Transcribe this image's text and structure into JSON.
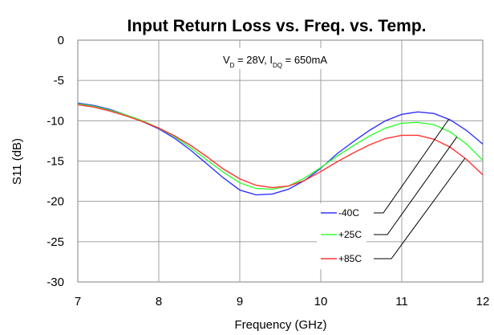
{
  "chart_data": {
    "type": "line",
    "title": "Input Return Loss vs. Freq. vs. Temp.",
    "xlabel": "Frequency (GHz)",
    "ylabel": "S11 (dB)",
    "xlim": [
      7,
      12
    ],
    "ylim": [
      -30,
      0
    ],
    "x_ticks": [
      7,
      8,
      9,
      10,
      11,
      12
    ],
    "x_tick_labels": [
      "7",
      "8",
      "9",
      "10",
      "11",
      "12"
    ],
    "y_ticks": [
      0,
      -5,
      -10,
      -15,
      -20,
      -25,
      -30
    ],
    "y_tick_labels": [
      "0",
      "-5",
      "-10",
      "-15",
      "-20",
      "-25",
      "-30"
    ],
    "grid": true,
    "annotation": {
      "v": "V",
      "v_sub": "D",
      "mid": " = 28V, I",
      "i_sub": "DQ",
      "end": " = 650mA"
    },
    "legend_placement": "bottom-right",
    "series": [
      {
        "name": "-40C",
        "color": "#3333ff",
        "points": [
          [
            7.0,
            -7.8
          ],
          [
            7.2,
            -8.1
          ],
          [
            7.4,
            -8.6
          ],
          [
            7.6,
            -9.3
          ],
          [
            7.8,
            -10.1
          ],
          [
            8.0,
            -11.0
          ],
          [
            8.2,
            -12.2
          ],
          [
            8.4,
            -13.7
          ],
          [
            8.6,
            -15.4
          ],
          [
            8.8,
            -17.1
          ],
          [
            9.0,
            -18.6
          ],
          [
            9.2,
            -19.2
          ],
          [
            9.4,
            -19.1
          ],
          [
            9.6,
            -18.5
          ],
          [
            9.8,
            -17.4
          ],
          [
            10.0,
            -15.9
          ],
          [
            10.2,
            -14.1
          ],
          [
            10.4,
            -12.6
          ],
          [
            10.6,
            -11.2
          ],
          [
            10.8,
            -10.0
          ],
          [
            11.0,
            -9.2
          ],
          [
            11.2,
            -8.9
          ],
          [
            11.4,
            -9.1
          ],
          [
            11.6,
            -9.9
          ],
          [
            11.8,
            -11.2
          ],
          [
            12.0,
            -12.9
          ]
        ]
      },
      {
        "name": "+25C",
        "color": "#33ff33",
        "points": [
          [
            7.0,
            -7.9
          ],
          [
            7.2,
            -8.2
          ],
          [
            7.4,
            -8.7
          ],
          [
            7.6,
            -9.3
          ],
          [
            7.8,
            -10.0
          ],
          [
            8.0,
            -10.9
          ],
          [
            8.2,
            -12.0
          ],
          [
            8.4,
            -13.4
          ],
          [
            8.6,
            -14.9
          ],
          [
            8.8,
            -16.4
          ],
          [
            9.0,
            -17.7
          ],
          [
            9.2,
            -18.4
          ],
          [
            9.4,
            -18.5
          ],
          [
            9.6,
            -18.1
          ],
          [
            9.8,
            -17.1
          ],
          [
            10.0,
            -15.8
          ],
          [
            10.2,
            -14.4
          ],
          [
            10.4,
            -13.1
          ],
          [
            10.6,
            -11.9
          ],
          [
            10.8,
            -10.9
          ],
          [
            11.0,
            -10.3
          ],
          [
            11.2,
            -10.2
          ],
          [
            11.4,
            -10.5
          ],
          [
            11.6,
            -11.4
          ],
          [
            11.8,
            -12.9
          ],
          [
            12.0,
            -14.9
          ]
        ]
      },
      {
        "name": "+85C",
        "color": "#ff3333",
        "points": [
          [
            7.0,
            -8.0
          ],
          [
            7.2,
            -8.3
          ],
          [
            7.4,
            -8.8
          ],
          [
            7.6,
            -9.4
          ],
          [
            7.8,
            -10.1
          ],
          [
            8.0,
            -10.9
          ],
          [
            8.2,
            -11.9
          ],
          [
            8.4,
            -13.1
          ],
          [
            8.6,
            -14.5
          ],
          [
            8.8,
            -16.0
          ],
          [
            9.0,
            -17.2
          ],
          [
            9.2,
            -18.0
          ],
          [
            9.4,
            -18.3
          ],
          [
            9.6,
            -18.1
          ],
          [
            9.8,
            -17.4
          ],
          [
            10.0,
            -16.3
          ],
          [
            10.2,
            -15.1
          ],
          [
            10.4,
            -14.0
          ],
          [
            10.6,
            -13.0
          ],
          [
            10.8,
            -12.2
          ],
          [
            11.0,
            -11.8
          ],
          [
            11.2,
            -11.8
          ],
          [
            11.4,
            -12.3
          ],
          [
            11.6,
            -13.3
          ],
          [
            11.8,
            -14.8
          ],
          [
            12.0,
            -16.7
          ]
        ]
      }
    ]
  }
}
